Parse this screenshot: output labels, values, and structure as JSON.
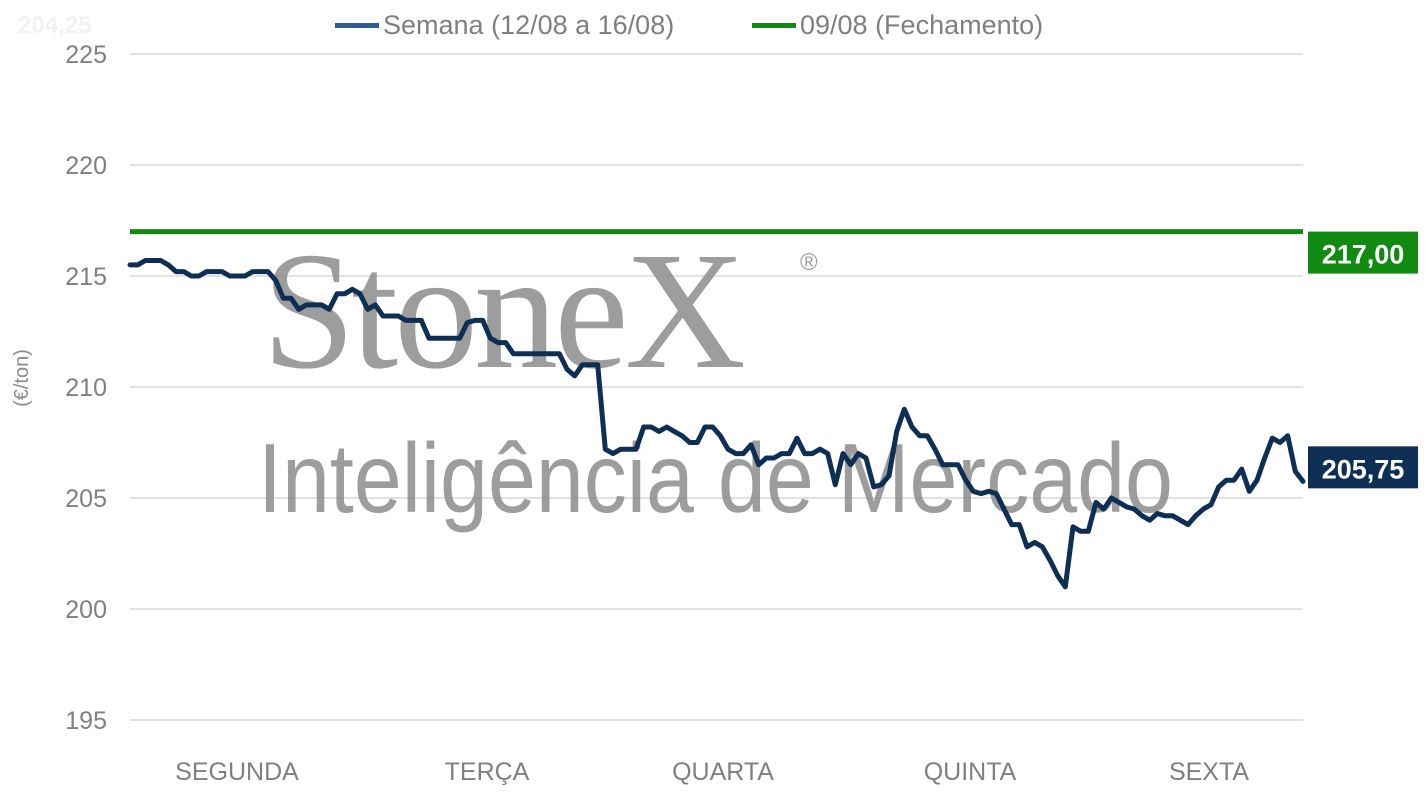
{
  "chart_data": {
    "type": "line",
    "title": "",
    "xlabel": "",
    "ylabel": "(€/ton)",
    "ylim": [
      195,
      225
    ],
    "y_ticks": [
      "195",
      "200",
      "205",
      "210",
      "215",
      "220",
      "225"
    ],
    "grid": true,
    "legend_position": "top",
    "day_labels": [
      "SEGUNDA",
      "TERÇA",
      "QUARTA",
      "QUINTA",
      "SEXTA"
    ],
    "corner_text": "204,25",
    "watermark": {
      "brand": "StoneX",
      "registered": "®",
      "tagline": "Inteligência de Mercado"
    },
    "series": [
      {
        "name": "Semana (12/08 a 16/08)",
        "color": "#0e2f55",
        "legend_color": "#2f5c92",
        "end_label": "205,75",
        "values": [
          215.5,
          215.5,
          215.7,
          215.7,
          215.7,
          215.5,
          215.2,
          215.2,
          215.0,
          215.0,
          215.2,
          215.2,
          215.2,
          215.0,
          215.0,
          215.0,
          215.2,
          215.2,
          215.2,
          214.8,
          214.0,
          214.0,
          213.5,
          213.7,
          213.7,
          213.7,
          213.5,
          214.2,
          214.2,
          214.4,
          214.2,
          213.5,
          213.7,
          213.2,
          213.2,
          213.2,
          213.0,
          213.0,
          213.0,
          212.2,
          212.2,
          212.2,
          212.2,
          212.2,
          212.9,
          213.0,
          213.0,
          212.2,
          212.0,
          212.0,
          211.5,
          211.5,
          211.5,
          211.5,
          211.5,
          211.5,
          211.5,
          210.8,
          210.5,
          211.0,
          211.0,
          211.0,
          207.2,
          207.0,
          207.2,
          207.2,
          207.2,
          208.2,
          208.2,
          208.0,
          208.2,
          208.0,
          207.8,
          207.5,
          207.5,
          208.2,
          208.2,
          207.8,
          207.2,
          207.0,
          207.0,
          207.4,
          206.5,
          206.8,
          206.8,
          207.0,
          207.0,
          207.7,
          207.0,
          207.0,
          207.2,
          207.0,
          205.6,
          207.0,
          206.5,
          207.0,
          206.8,
          205.5,
          205.6,
          206.0,
          208.0,
          209.0,
          208.2,
          207.8,
          207.8,
          207.2,
          206.5,
          206.5,
          206.5,
          205.8,
          205.3,
          205.2,
          205.3,
          205.2,
          204.5,
          203.8,
          203.8,
          202.8,
          203.0,
          202.8,
          202.2,
          201.5,
          201.0,
          203.7,
          203.5,
          203.5,
          204.8,
          204.5,
          205.0,
          204.8,
          204.6,
          204.5,
          204.2,
          204.0,
          204.3,
          204.2,
          204.2,
          204.0,
          203.8,
          204.2,
          204.5,
          204.7,
          205.5,
          205.8,
          205.8,
          206.3,
          205.3,
          205.8,
          206.8,
          207.7,
          207.5,
          207.8,
          206.2,
          205.75
        ]
      },
      {
        "name": "09/08 (Fechamento)",
        "color": "#118a11",
        "end_label": "217,00",
        "values": [
          217.0,
          217.0
        ]
      }
    ]
  }
}
